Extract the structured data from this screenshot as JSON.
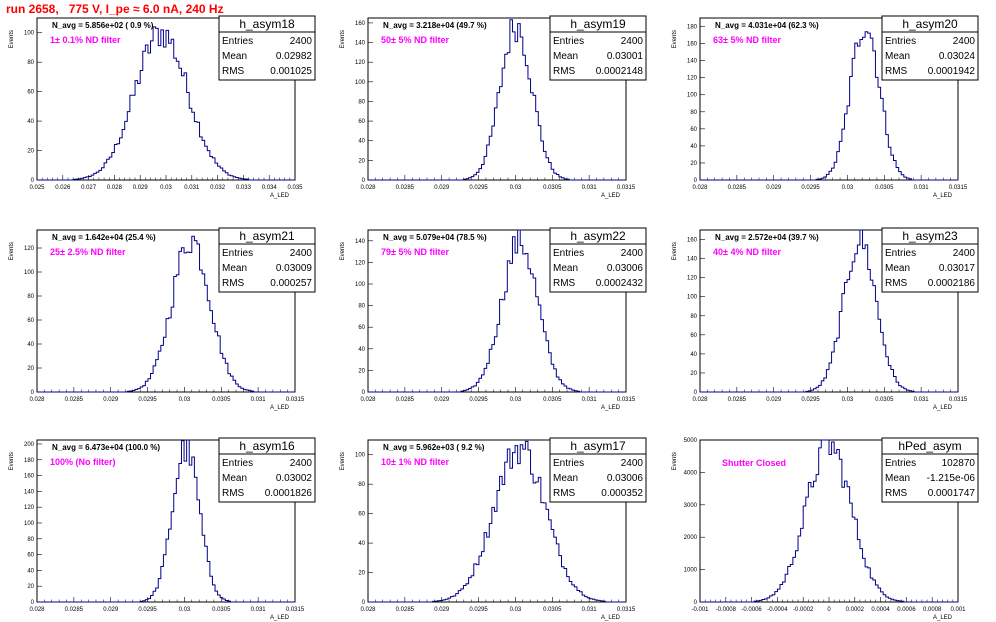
{
  "header": {
    "run_title": "run 2658,   775 V, I_pe ≈ 6.0 nA, 240 Hz"
  },
  "axis_labels": {
    "x": "A_LED",
    "y": "Events"
  },
  "stat_labels": {
    "entries": "Entries",
    "mean": "Mean",
    "rms": "RMS"
  },
  "colors": {
    "histogram": "#00008b",
    "title": "#ff0000",
    "annotation": "#ff00ff"
  },
  "chart_data": [
    {
      "type": "bar",
      "name": "h_asym18",
      "navg": "N_avg = 5.856e+02 ( 0.9 %)",
      "filter": "1± 0.1% ND filter",
      "stats": {
        "entries": "2400",
        "mean": "0.02982",
        "rms": "0.001025"
      },
      "xlim": [
        0.025,
        0.035
      ],
      "ylim": [
        0,
        110
      ],
      "xticks": [
        "0.025",
        "0.026",
        "0.027",
        "0.028",
        "0.029",
        "0.03",
        "0.031",
        "0.032",
        "0.033",
        "0.034",
        "0.035"
      ],
      "yticks": [
        0,
        20,
        40,
        60,
        80,
        100
      ],
      "mean": 0.02982,
      "sigma": 0.001025,
      "peak": 100,
      "nbins": 100
    },
    {
      "type": "bar",
      "name": "h_asym19",
      "navg": "N_avg = 3.218e+04 (49.7 %)",
      "filter": "50± 5% ND filter",
      "stats": {
        "entries": "2400",
        "mean": "0.03001",
        "rms": "0.0002148"
      },
      "xlim": [
        0.028,
        0.0315
      ],
      "ylim": [
        0,
        165
      ],
      "xticks": [
        "0.028",
        "0.0285",
        "0.029",
        "0.0295",
        "0.03",
        "0.0305",
        "0.031",
        "0.0315"
      ],
      "yticks": [
        0,
        20,
        40,
        60,
        80,
        100,
        120,
        140,
        160
      ],
      "mean": 0.03001,
      "sigma": 0.0002148,
      "peak": 158,
      "nbins": 100
    },
    {
      "type": "bar",
      "name": "h_asym20",
      "navg": "N_avg = 4.031e+04 (62.3 %)",
      "filter": "63± 5% ND filter",
      "stats": {
        "entries": "2400",
        "mean": "0.03024",
        "rms": "0.0001942"
      },
      "xlim": [
        0.028,
        0.0315
      ],
      "ylim": [
        0,
        190
      ],
      "xticks": [
        "0.028",
        "0.0285",
        "0.029",
        "0.0295",
        "0.03",
        "0.0305",
        "0.031",
        "0.0315"
      ],
      "yticks": [
        0,
        20,
        40,
        60,
        80,
        100,
        120,
        140,
        160,
        180
      ],
      "mean": 0.03024,
      "sigma": 0.0001942,
      "peak": 185,
      "nbins": 100
    },
    {
      "type": "bar",
      "name": "h_asym21",
      "navg": "N_avg = 1.642e+04 (25.4 %)",
      "filter": "25± 2.5% ND filter",
      "stats": {
        "entries": "2400",
        "mean": "0.03009",
        "rms": "0.000257"
      },
      "xlim": [
        0.028,
        0.0315
      ],
      "ylim": [
        0,
        135
      ],
      "xticks": [
        "0.028",
        "0.0285",
        "0.029",
        "0.0295",
        "0.03",
        "0.0305",
        "0.031",
        "0.0315"
      ],
      "yticks": [
        0,
        20,
        40,
        60,
        80,
        100,
        120
      ],
      "mean": 0.03009,
      "sigma": 0.000257,
      "peak": 128,
      "nbins": 100
    },
    {
      "type": "bar",
      "name": "h_asym22",
      "navg": "N_avg = 5.079e+04 (78.5 %)",
      "filter": "79± 5% ND filter",
      "stats": {
        "entries": "2400",
        "mean": "0.03006",
        "rms": "0.0002432"
      },
      "xlim": [
        0.028,
        0.0315
      ],
      "ylim": [
        0,
        150
      ],
      "xticks": [
        "0.028",
        "0.0285",
        "0.029",
        "0.0295",
        "0.03",
        "0.0305",
        "0.031",
        "0.0315"
      ],
      "yticks": [
        0,
        20,
        40,
        60,
        80,
        100,
        120,
        140
      ],
      "mean": 0.03006,
      "sigma": 0.0002432,
      "peak": 140,
      "nbins": 100
    },
    {
      "type": "bar",
      "name": "h_asym23",
      "navg": "N_avg = 2.572e+04 (39.7 %)",
      "filter": "40± 4% ND filter",
      "stats": {
        "entries": "2400",
        "mean": "0.03017",
        "rms": "0.0002186"
      },
      "xlim": [
        0.028,
        0.0315
      ],
      "ylim": [
        0,
        170
      ],
      "xticks": [
        "0.028",
        "0.0285",
        "0.029",
        "0.0295",
        "0.03",
        "0.0305",
        "0.031",
        "0.0315"
      ],
      "yticks": [
        0,
        20,
        40,
        60,
        80,
        100,
        120,
        140,
        160
      ],
      "mean": 0.03017,
      "sigma": 0.0002186,
      "peak": 160,
      "nbins": 100
    },
    {
      "type": "bar",
      "name": "h_asym16",
      "navg": "N_avg = 6.473e+04 (100.0 %)",
      "filter": "100% (No filter)",
      "stats": {
        "entries": "2400",
        "mean": "0.03002",
        "rms": "0.0001826"
      },
      "xlim": [
        0.028,
        0.0315
      ],
      "ylim": [
        0,
        205
      ],
      "xticks": [
        "0.028",
        "0.0285",
        "0.029",
        "0.0295",
        "0.03",
        "0.0305",
        "0.031",
        "0.0315"
      ],
      "yticks": [
        0,
        20,
        40,
        60,
        80,
        100,
        120,
        140,
        160,
        180,
        200
      ],
      "mean": 0.03002,
      "sigma": 0.0001826,
      "peak": 195,
      "nbins": 100
    },
    {
      "type": "bar",
      "name": "h_asym17",
      "navg": "N_avg = 5.962e+03 ( 9.2 %)",
      "filter": "10± 1% ND filter",
      "stats": {
        "entries": "2400",
        "mean": "0.03006",
        "rms": "0.000352"
      },
      "xlim": [
        0.028,
        0.0315
      ],
      "ylim": [
        0,
        110
      ],
      "xticks": [
        "0.028",
        "0.0285",
        "0.029",
        "0.0295",
        "0.03",
        "0.0305",
        "0.031",
        "0.0315"
      ],
      "yticks": [
        0,
        20,
        40,
        60,
        80,
        100
      ],
      "mean": 0.03006,
      "sigma": 0.000352,
      "peak": 105,
      "nbins": 100
    },
    {
      "type": "bar",
      "name": "hPed_asym",
      "navg": "",
      "filter": "Shutter Closed",
      "stats": {
        "entries": "102870",
        "mean": "-1.215e-06",
        "rms": "0.0001747"
      },
      "xlim": [
        -0.001,
        0.001
      ],
      "ylim": [
        0,
        5000
      ],
      "xticks": [
        "-0.001",
        "-0.0008",
        "-0.0006",
        "-0.0004",
        "-0.0002",
        "0",
        "0.0002",
        "0.0004",
        "0.0006",
        "0.0008",
        "0.001"
      ],
      "yticks": [
        0,
        1000,
        2000,
        3000,
        4000,
        5000
      ],
      "mean": -1.215e-06,
      "sigma": 0.0001747,
      "peak": 4850,
      "nbins": 100
    }
  ]
}
